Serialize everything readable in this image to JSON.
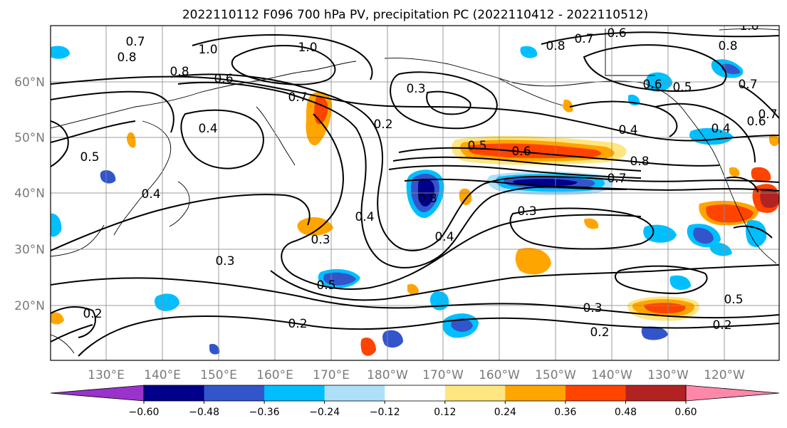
{
  "map": {
    "title": "2022110112 F096 700 hPa PV, precipitation PC (2022110412 - 2022110512)",
    "lat_labels": [
      "60°N",
      "50°N",
      "40°N",
      "30°N",
      "20°N"
    ],
    "lon_labels": [
      "130°E",
      "140°E",
      "150°E",
      "160°E",
      "170°E",
      "180°W",
      "170°W",
      "160°W",
      "150°W",
      "140°W",
      "130°W",
      "120°W"
    ],
    "contour_labels": [
      "0.7",
      "0.8",
      "1.0",
      "1.0",
      "0.8",
      "0.6",
      "0.7",
      "0.4",
      "0.5",
      "0.4",
      "0.3",
      "0.2",
      "0.3",
      "0.3",
      "0.5",
      "0.2",
      "0.2",
      "0.4",
      "0.8",
      "0.4",
      "0.5",
      "0.6",
      "0.8",
      "0.7",
      "0.3",
      "0.3",
      "0.2",
      "0.8",
      "0.7",
      "0.6",
      "1.0",
      "0.8",
      "0.6",
      "0.5",
      "0.7",
      "0.4",
      "0.4",
      "0.6",
      "0.7",
      "0.5",
      "0.2"
    ]
  },
  "colorbar": {
    "ticks": [
      "−0.60",
      "−0.48",
      "−0.36",
      "−0.24",
      "−0.12",
      "0.12",
      "0.24",
      "0.36",
      "0.48",
      "0.60"
    ],
    "colors": [
      "#9933cc",
      "#00008b",
      "#3355cc",
      "#00bfff",
      "#aee0fa",
      "#ffffff",
      "#ffe680",
      "#ffa500",
      "#ff4400",
      "#b22222",
      "#ff88aa"
    ]
  },
  "legend": {
    "precip_colors": {
      "neg_weak": "#aee0fa",
      "neg_mod": "#00bfff",
      "neg_strong": "#3355cc",
      "neg_max": "#00008b",
      "pos_weak": "#ffe680",
      "pos_mod": "#ffa500",
      "pos_strong": "#ff4400",
      "pos_max": "#b22222"
    }
  }
}
